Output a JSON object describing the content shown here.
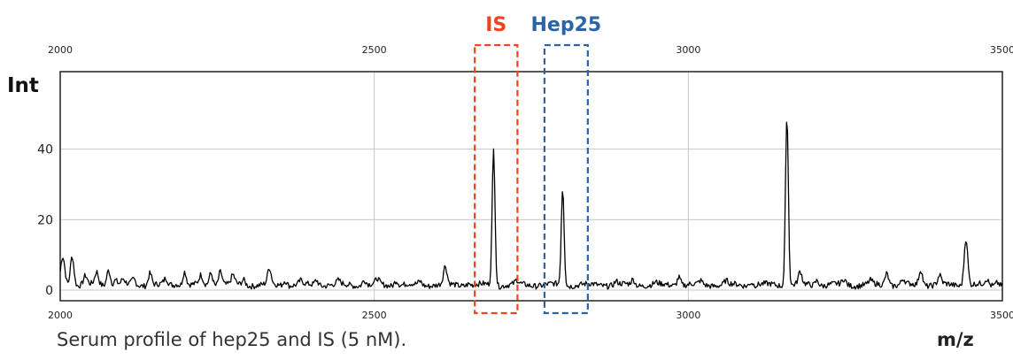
{
  "caption": "Serum profile of hep25 and IS (5 nM).",
  "chart_data": {
    "type": "line",
    "ylabel": "Int",
    "xlabel": "m/z",
    "xlim": [
      2000,
      3500
    ],
    "ylim": [
      -3,
      62
    ],
    "x_ticks": [
      "2000",
      "2500",
      "3000",
      "3500"
    ],
    "y_ticks": [
      "0",
      "20",
      "40"
    ],
    "grid": true,
    "line_color": "#000000",
    "baseline": 1.5,
    "peaks": [
      {
        "x": 2003,
        "y": 7
      },
      {
        "x": 2006,
        "y": 5
      },
      {
        "x": 2019,
        "y": 10
      },
      {
        "x": 2040,
        "y": 4
      },
      {
        "x": 2058,
        "y": 5
      },
      {
        "x": 2077,
        "y": 6
      },
      {
        "x": 2088,
        "y": 3
      },
      {
        "x": 2100,
        "y": 3
      },
      {
        "x": 2117,
        "y": 3
      },
      {
        "x": 2143,
        "y": 5
      },
      {
        "x": 2168,
        "y": 3
      },
      {
        "x": 2186,
        "y": 2
      },
      {
        "x": 2198,
        "y": 5.5
      },
      {
        "x": 2224,
        "y": 4
      },
      {
        "x": 2240,
        "y": 5
      },
      {
        "x": 2255,
        "y": 5.5
      },
      {
        "x": 2275,
        "y": 4
      },
      {
        "x": 2292,
        "y": 3
      },
      {
        "x": 2333,
        "y": 6
      },
      {
        "x": 2358,
        "y": 3
      },
      {
        "x": 2383,
        "y": 2.5
      },
      {
        "x": 2408,
        "y": 3
      },
      {
        "x": 2443,
        "y": 2.5
      },
      {
        "x": 2484,
        "y": 3
      },
      {
        "x": 2505,
        "y": 3
      },
      {
        "x": 2535,
        "y": 3
      },
      {
        "x": 2573,
        "y": 2.5
      },
      {
        "x": 2613,
        "y": 6.5
      },
      {
        "x": 2650,
        "y": 2
      },
      {
        "x": 2690,
        "y": 40
      },
      {
        "x": 2727,
        "y": 2.5
      },
      {
        "x": 2800,
        "y": 29
      },
      {
        "x": 2885,
        "y": 2.5
      },
      {
        "x": 2912,
        "y": 3
      },
      {
        "x": 2948,
        "y": 2
      },
      {
        "x": 2985,
        "y": 4
      },
      {
        "x": 3020,
        "y": 2.5
      },
      {
        "x": 3060,
        "y": 2.5
      },
      {
        "x": 3100,
        "y": 2.5
      },
      {
        "x": 3157,
        "y": 50
      },
      {
        "x": 3178,
        "y": 5
      },
      {
        "x": 3205,
        "y": 3
      },
      {
        "x": 3248,
        "y": 3
      },
      {
        "x": 3290,
        "y": 2.5
      },
      {
        "x": 3316,
        "y": 5
      },
      {
        "x": 3342,
        "y": 3
      },
      {
        "x": 3370,
        "y": 6
      },
      {
        "x": 3400,
        "y": 4
      },
      {
        "x": 3442,
        "y": 15
      },
      {
        "x": 3475,
        "y": 3
      },
      {
        "x": 3492,
        "y": 2.5
      }
    ],
    "annotations": [
      {
        "label": "IS",
        "x_range": [
          2660,
          2728
        ],
        "color": "#ee4422"
      },
      {
        "label": "Hep25",
        "x_range": [
          2771,
          2840
        ],
        "color": "#2a64a8"
      }
    ]
  }
}
